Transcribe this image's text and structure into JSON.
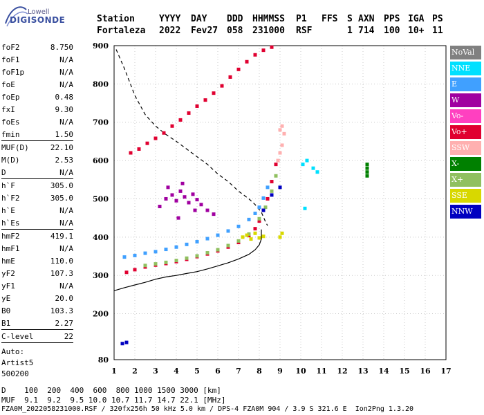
{
  "logo": {
    "brand_top": "Lowell",
    "brand_main": "DIGISONDE"
  },
  "header": {
    "line1": [
      "Station",
      "YYYY",
      "DAY",
      "DDD",
      "HHMMSS",
      "P1",
      "FFS",
      "S",
      "AXN",
      "PPS",
      "IGA",
      "PS"
    ],
    "line2": [
      "Fortaleza",
      "2022",
      "Fev27",
      "058",
      "231000",
      "RSF",
      "1",
      "714",
      "100",
      "10+",
      "11"
    ]
  },
  "params": [
    {
      "label": "foF2",
      "value": "8.750",
      "sep": false
    },
    {
      "label": "foF1",
      "value": "N/A",
      "sep": false
    },
    {
      "label": "foF1p",
      "value": "N/A",
      "sep": false
    },
    {
      "label": "foE",
      "value": "N/A",
      "sep": false
    },
    {
      "label": "foEp",
      "value": "0.48",
      "sep": false
    },
    {
      "label": "fxI",
      "value": "9.30",
      "sep": false
    },
    {
      "label": "foEs",
      "value": "N/A",
      "sep": false
    },
    {
      "label": "fmin",
      "value": "1.50",
      "sep": false
    },
    {
      "label": "MUF(D)",
      "value": "22.10",
      "sep": true
    },
    {
      "label": "M(D)",
      "value": "2.53",
      "sep": false
    },
    {
      "label": "D",
      "value": "N/A",
      "sep": false
    },
    {
      "label": "h`F",
      "value": "305.0",
      "sep": true
    },
    {
      "label": "h`F2",
      "value": "305.0",
      "sep": false
    },
    {
      "label": "h`E",
      "value": "N/A",
      "sep": false
    },
    {
      "label": "h`Es",
      "value": "N/A",
      "sep": false
    },
    {
      "label": "hmF2",
      "value": "419.1",
      "sep": true
    },
    {
      "label": "hmF1",
      "value": "N/A",
      "sep": false
    },
    {
      "label": "hmE",
      "value": "110.0",
      "sep": false
    },
    {
      "label": "yF2",
      "value": "107.3",
      "sep": false
    },
    {
      "label": "yF1",
      "value": "N/A",
      "sep": false
    },
    {
      "label": "yE",
      "value": "20.0",
      "sep": false
    },
    {
      "label": "B0",
      "value": "103.3",
      "sep": false
    },
    {
      "label": "B1",
      "value": "2.27",
      "sep": false
    },
    {
      "label": "C-level",
      "value": "22",
      "sep": true
    }
  ],
  "extra": [
    "Auto:",
    "Artist5",
    "500200"
  ],
  "legend": [
    {
      "label": "NoVal",
      "color": "#808080"
    },
    {
      "label": "NNE",
      "color": "#00e0ff"
    },
    {
      "label": "E",
      "color": "#40a0ff"
    },
    {
      "label": "W",
      "color": "#a000a0"
    },
    {
      "label": "Vo-",
      "color": "#ff40c0"
    },
    {
      "label": "Vo+",
      "color": "#e00030"
    },
    {
      "label": "SSW",
      "color": "#ffb0b0"
    },
    {
      "label": "X-",
      "color": "#008000"
    },
    {
      "label": "X+",
      "color": "#90c060"
    },
    {
      "label": "SSE",
      "color": "#d8d800"
    },
    {
      "label": "NNW",
      "color": "#0000c0"
    }
  ],
  "footer": {
    "line1": "D    100  200  400  600  800 1000 1500 3000 [km]",
    "line2": "MUF  9.1  9.2  9.5 10.0 10.7 11.7 14.7 22.1 [MHz]",
    "line3": "FZA0M_2022058231000.RSF / 320fx256h 50 kHz 5.0 km / DPS-4 FZA0M 904 / 3.9 S 321.6 E  Ion2Png 1.3.20"
  },
  "chart_data": {
    "type": "scatter",
    "xlim": [
      1,
      17
    ],
    "ylim": [
      80,
      900
    ],
    "x_ticks": [
      1,
      2,
      3,
      4,
      5,
      6,
      7,
      8,
      9,
      10,
      11,
      12,
      13,
      14,
      15,
      16,
      17
    ],
    "y_ticks": [
      80,
      200,
      300,
      400,
      500,
      600,
      700,
      800,
      900
    ],
    "grid": true,
    "legend_position": "right",
    "series": [
      {
        "name": "E",
        "color": "#40a0ff",
        "points": [
          [
            1.5,
            348
          ],
          [
            2,
            352
          ],
          [
            2.5,
            358
          ],
          [
            3,
            362
          ],
          [
            3.5,
            368
          ],
          [
            4,
            374
          ],
          [
            4.5,
            381
          ],
          [
            5,
            388
          ],
          [
            5.5,
            396
          ],
          [
            6,
            405
          ],
          [
            6.5,
            416
          ],
          [
            7,
            428
          ],
          [
            7.5,
            446
          ],
          [
            7.8,
            462
          ],
          [
            8,
            478
          ],
          [
            8.2,
            502
          ],
          [
            8.4,
            530
          ]
        ]
      },
      {
        "name": "Vo+",
        "color": "#e00030",
        "points": [
          [
            1.6,
            308
          ],
          [
            2,
            315
          ],
          [
            2.5,
            322
          ],
          [
            3,
            327
          ],
          [
            3.5,
            331
          ],
          [
            4,
            336
          ],
          [
            4.5,
            342
          ],
          [
            5,
            349
          ],
          [
            5.5,
            356
          ],
          [
            6,
            364
          ],
          [
            6.5,
            374
          ],
          [
            7,
            386
          ],
          [
            7.5,
            404
          ],
          [
            7.8,
            422
          ],
          [
            8,
            442
          ],
          [
            8.2,
            470
          ],
          [
            8.4,
            500
          ],
          [
            8.6,
            545
          ],
          [
            8.8,
            590
          ]
        ]
      },
      {
        "name": "Vo+",
        "color": "#e00030",
        "points": [
          [
            1.8,
            620
          ],
          [
            2.2,
            630
          ],
          [
            2.6,
            645
          ],
          [
            3,
            658
          ],
          [
            3.4,
            672
          ],
          [
            3.8,
            690
          ],
          [
            4.2,
            706
          ],
          [
            4.6,
            724
          ],
          [
            5,
            742
          ],
          [
            5.4,
            758
          ],
          [
            5.8,
            776
          ],
          [
            6.2,
            795
          ],
          [
            6.6,
            818
          ],
          [
            7,
            838
          ],
          [
            7.4,
            858
          ],
          [
            7.8,
            876
          ],
          [
            8.2,
            888
          ],
          [
            8.6,
            896
          ]
        ]
      },
      {
        "name": "X+",
        "color": "#90c060",
        "points": [
          [
            2.5,
            326
          ],
          [
            3,
            330
          ],
          [
            3.5,
            334
          ],
          [
            4,
            339
          ],
          [
            4.5,
            345
          ],
          [
            5,
            351
          ],
          [
            5.5,
            359
          ],
          [
            6,
            367
          ],
          [
            6.5,
            378
          ],
          [
            7,
            390
          ],
          [
            7.5,
            408
          ],
          [
            8,
            448
          ],
          [
            8.3,
            478
          ],
          [
            8.6,
            520
          ],
          [
            8.8,
            560
          ]
        ]
      },
      {
        "name": "W",
        "color": "#a000a0",
        "points": [
          [
            3.2,
            480
          ],
          [
            3.5,
            500
          ],
          [
            3.8,
            510
          ],
          [
            4,
            495
          ],
          [
            4.2,
            520
          ],
          [
            4.4,
            505
          ],
          [
            4.6,
            490
          ],
          [
            4.8,
            512
          ],
          [
            5,
            498
          ],
          [
            5.2,
            485
          ],
          [
            5.5,
            470
          ],
          [
            5.8,
            460
          ],
          [
            3.6,
            530
          ],
          [
            4.3,
            540
          ],
          [
            4.9,
            470
          ],
          [
            4.1,
            450
          ]
        ]
      },
      {
        "name": "SSE",
        "color": "#d8d800",
        "points": [
          [
            7.2,
            400
          ],
          [
            7.4,
            405
          ],
          [
            7.6,
            395
          ],
          [
            7.8,
            410
          ],
          [
            8,
            398
          ],
          [
            8.2,
            402
          ],
          [
            9,
            400
          ],
          [
            9.1,
            410
          ]
        ]
      },
      {
        "name": "SSW",
        "color": "#ffb0b0",
        "points": [
          [
            8.9,
            600
          ],
          [
            9,
            620
          ],
          [
            9.1,
            640
          ],
          [
            9.2,
            670
          ],
          [
            9.0,
            680
          ],
          [
            9.1,
            690
          ]
        ]
      },
      {
        "name": "NNE",
        "color": "#00e0ff",
        "points": [
          [
            10.1,
            590
          ],
          [
            10.3,
            600
          ],
          [
            10.6,
            580
          ],
          [
            10.8,
            570
          ],
          [
            10.2,
            475
          ]
        ]
      },
      {
        "name": "X-",
        "color": "#008000",
        "points": [
          [
            13.2,
            560
          ],
          [
            13.2,
            570
          ],
          [
            13.2,
            580
          ],
          [
            13.2,
            590
          ]
        ]
      },
      {
        "name": "NNW",
        "color": "#0000c0",
        "points": [
          [
            8.2,
            470
          ],
          [
            8.6,
            510
          ],
          [
            9.0,
            530
          ],
          [
            1.4,
            122
          ],
          [
            1.6,
            125
          ]
        ]
      }
    ],
    "curves": [
      {
        "style": "dashed",
        "points": [
          [
            1.1,
            890
          ],
          [
            1.5,
            840
          ],
          [
            2,
            770
          ],
          [
            2.5,
            720
          ],
          [
            3,
            690
          ],
          [
            3.5,
            668
          ],
          [
            4,
            650
          ],
          [
            4.5,
            630
          ],
          [
            5,
            610
          ],
          [
            5.5,
            590
          ],
          [
            6,
            565
          ],
          [
            6.5,
            545
          ],
          [
            7,
            520
          ],
          [
            7.5,
            500
          ],
          [
            7.8,
            485
          ],
          [
            8.1,
            465
          ],
          [
            8.3,
            440
          ],
          [
            8.4,
            430
          ]
        ]
      },
      {
        "style": "solid",
        "points": [
          [
            1,
            260
          ],
          [
            1.5,
            268
          ],
          [
            2,
            275
          ],
          [
            2.5,
            282
          ],
          [
            3,
            290
          ],
          [
            3.5,
            296
          ],
          [
            4,
            300
          ],
          [
            4.5,
            305
          ],
          [
            5,
            310
          ],
          [
            5.5,
            317
          ],
          [
            6,
            325
          ],
          [
            6.5,
            333
          ],
          [
            7,
            343
          ],
          [
            7.5,
            355
          ],
          [
            7.8,
            367
          ],
          [
            8,
            380
          ],
          [
            8.1,
            395
          ],
          [
            8.1,
            420
          ]
        ]
      }
    ]
  }
}
